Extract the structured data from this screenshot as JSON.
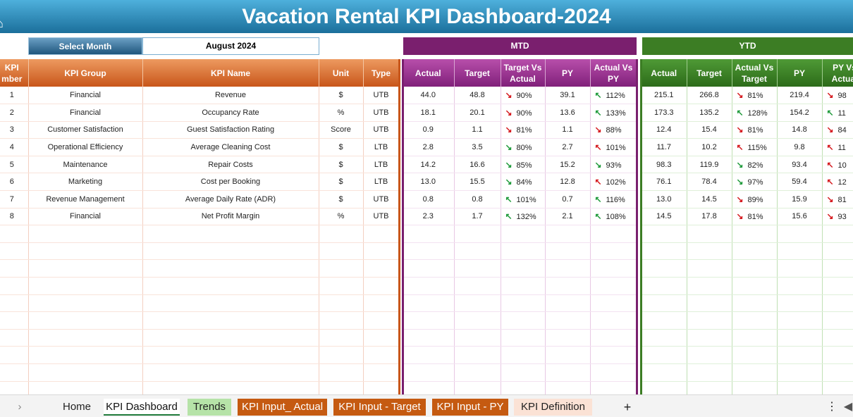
{
  "title": "Vacation Rental KPI Dashboard-2024",
  "selector": {
    "label": "Select Month",
    "value": "August 2024"
  },
  "bands": {
    "mtd": "MTD",
    "ytd": "YTD"
  },
  "left_headers": [
    "KPI\nmber",
    "KPI Group",
    "KPI Name",
    "Unit",
    "Type"
  ],
  "mtd_headers": [
    "Actual",
    "Target",
    "Target Vs Actual",
    "PY",
    "Actual Vs PY"
  ],
  "ytd_headers": [
    "Actual",
    "Target",
    "Actual Vs Target",
    "PY",
    "PY Vs Actual"
  ],
  "rows": [
    {
      "num": "1",
      "group": "Financial",
      "name": "Revenue",
      "unit": "$",
      "type": "UTB",
      "mtd": {
        "actual": "44.0",
        "target": "48.8",
        "tva_dir": "down",
        "tva": "90%",
        "py": "39.1",
        "avp_dir": "up",
        "avp": "112%"
      },
      "ytd": {
        "actual": "215.1",
        "target": "266.8",
        "avt_dir": "down",
        "avt": "81%",
        "py": "219.4",
        "pva_dir": "down",
        "pva": "98"
      }
    },
    {
      "num": "2",
      "group": "Financial",
      "name": "Occupancy Rate",
      "unit": "%",
      "type": "UTB",
      "mtd": {
        "actual": "18.1",
        "target": "20.1",
        "tva_dir": "down",
        "tva": "90%",
        "py": "13.6",
        "avp_dir": "up",
        "avp": "133%"
      },
      "ytd": {
        "actual": "173.3",
        "target": "135.2",
        "avt_dir": "up",
        "avt": "128%",
        "py": "154.2",
        "pva_dir": "up",
        "pva": "11"
      }
    },
    {
      "num": "3",
      "group": "Customer Satisfaction",
      "name": "Guest Satisfaction Rating",
      "unit": "Score",
      "type": "UTB",
      "mtd": {
        "actual": "0.9",
        "target": "1.1",
        "tva_dir": "down",
        "tva": "81%",
        "py": "1.1",
        "avp_dir": "down",
        "avp": "88%"
      },
      "ytd": {
        "actual": "12.4",
        "target": "15.4",
        "avt_dir": "down",
        "avt": "81%",
        "py": "14.8",
        "pva_dir": "down",
        "pva": "84"
      }
    },
    {
      "num": "4",
      "group": "Operational Efficiency",
      "name": "Average Cleaning Cost",
      "unit": "$",
      "type": "LTB",
      "mtd": {
        "actual": "2.8",
        "target": "3.5",
        "tva_dir": "good",
        "tva": "80%",
        "py": "2.7",
        "avp_dir": "bad",
        "avp": "101%"
      },
      "ytd": {
        "actual": "11.7",
        "target": "10.2",
        "avt_dir": "bad",
        "avt": "115%",
        "py": "9.8",
        "pva_dir": "bad",
        "pva": "11"
      }
    },
    {
      "num": "5",
      "group": "Maintenance",
      "name": "Repair Costs",
      "unit": "$",
      "type": "LTB",
      "mtd": {
        "actual": "14.2",
        "target": "16.6",
        "tva_dir": "good",
        "tva": "85%",
        "py": "15.2",
        "avp_dir": "good",
        "avp": "93%"
      },
      "ytd": {
        "actual": "98.3",
        "target": "119.9",
        "avt_dir": "good",
        "avt": "82%",
        "py": "93.4",
        "pva_dir": "bad",
        "pva": "10"
      }
    },
    {
      "num": "6",
      "group": "Marketing",
      "name": "Cost per Booking",
      "unit": "$",
      "type": "LTB",
      "mtd": {
        "actual": "13.0",
        "target": "15.5",
        "tva_dir": "good",
        "tva": "84%",
        "py": "12.8",
        "avp_dir": "bad",
        "avp": "102%"
      },
      "ytd": {
        "actual": "76.1",
        "target": "78.4",
        "avt_dir": "good",
        "avt": "97%",
        "py": "59.4",
        "pva_dir": "bad",
        "pva": "12"
      }
    },
    {
      "num": "7",
      "group": "Revenue Management",
      "name": "Average Daily Rate (ADR)",
      "unit": "$",
      "type": "UTB",
      "mtd": {
        "actual": "0.8",
        "target": "0.8",
        "tva_dir": "up",
        "tva": "101%",
        "py": "0.7",
        "avp_dir": "up",
        "avp": "116%"
      },
      "ytd": {
        "actual": "13.0",
        "target": "14.5",
        "avt_dir": "down",
        "avt": "89%",
        "py": "15.9",
        "pva_dir": "down",
        "pva": "81"
      }
    },
    {
      "num": "8",
      "group": "Financial",
      "name": "Net Profit Margin",
      "unit": "%",
      "type": "UTB",
      "mtd": {
        "actual": "2.3",
        "target": "1.7",
        "tva_dir": "up",
        "tva": "132%",
        "py": "2.1",
        "avp_dir": "up",
        "avp": "108%"
      },
      "ytd": {
        "actual": "14.5",
        "target": "17.8",
        "avt_dir": "down",
        "avt": "81%",
        "py": "15.6",
        "pva_dir": "down",
        "pva": "93"
      }
    }
  ],
  "tabs": [
    "Home",
    "KPI Dashboard",
    "Trends",
    "KPI Input_ Actual",
    "KPI Input - Target",
    "KPI Input - PY",
    "KPI Definition"
  ],
  "tab_icons": {
    "prev": "chevron-right-icon",
    "add": "plus-icon",
    "more": "vertical-dots-icon"
  },
  "colors": {
    "title": "#1b6f9b",
    "mtd": "#7a1f6e",
    "ytd": "#3c7d24",
    "kpi_header": "#c8561a",
    "up": "#1e9a3a",
    "down": "#d5181d"
  }
}
